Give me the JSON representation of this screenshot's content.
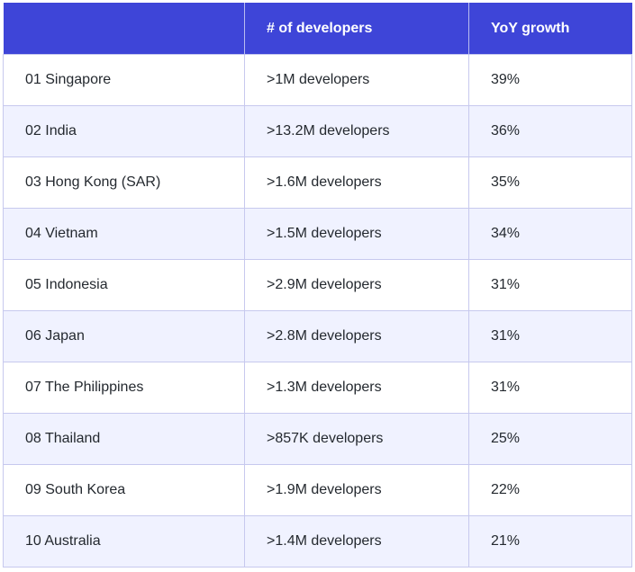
{
  "table": {
    "headers": [
      "",
      "# of developers",
      "YoY growth"
    ],
    "rows": [
      {
        "country": "01 Singapore",
        "developers": ">1M developers",
        "growth": "39%"
      },
      {
        "country": "02 India",
        "developers": ">13.2M developers",
        "growth": "36%"
      },
      {
        "country": "03 Hong Kong (SAR)",
        "developers": ">1.6M developers",
        "growth": "35%"
      },
      {
        "country": "04 Vietnam",
        "developers": ">1.5M developers",
        "growth": "34%"
      },
      {
        "country": "05 Indonesia",
        "developers": ">2.9M developers",
        "growth": "31%"
      },
      {
        "country": "06 Japan",
        "developers": ">2.8M developers",
        "growth": "31%"
      },
      {
        "country": "07 The Philippines",
        "developers": ">1.3M developers",
        "growth": "31%"
      },
      {
        "country": "08 Thailand",
        "developers": ">857K developers",
        "growth": "25%"
      },
      {
        "country": "09 South Korea",
        "developers": ">1.9M developers",
        "growth": "22%"
      },
      {
        "country": "10 Australia",
        "developers": ">1.4M developers",
        "growth": "21%"
      }
    ]
  },
  "colors": {
    "header_bg": "#3e45d8",
    "header_text": "#ffffff",
    "stripe_bg": "#f0f2ff",
    "border": "#c7c9ee"
  }
}
